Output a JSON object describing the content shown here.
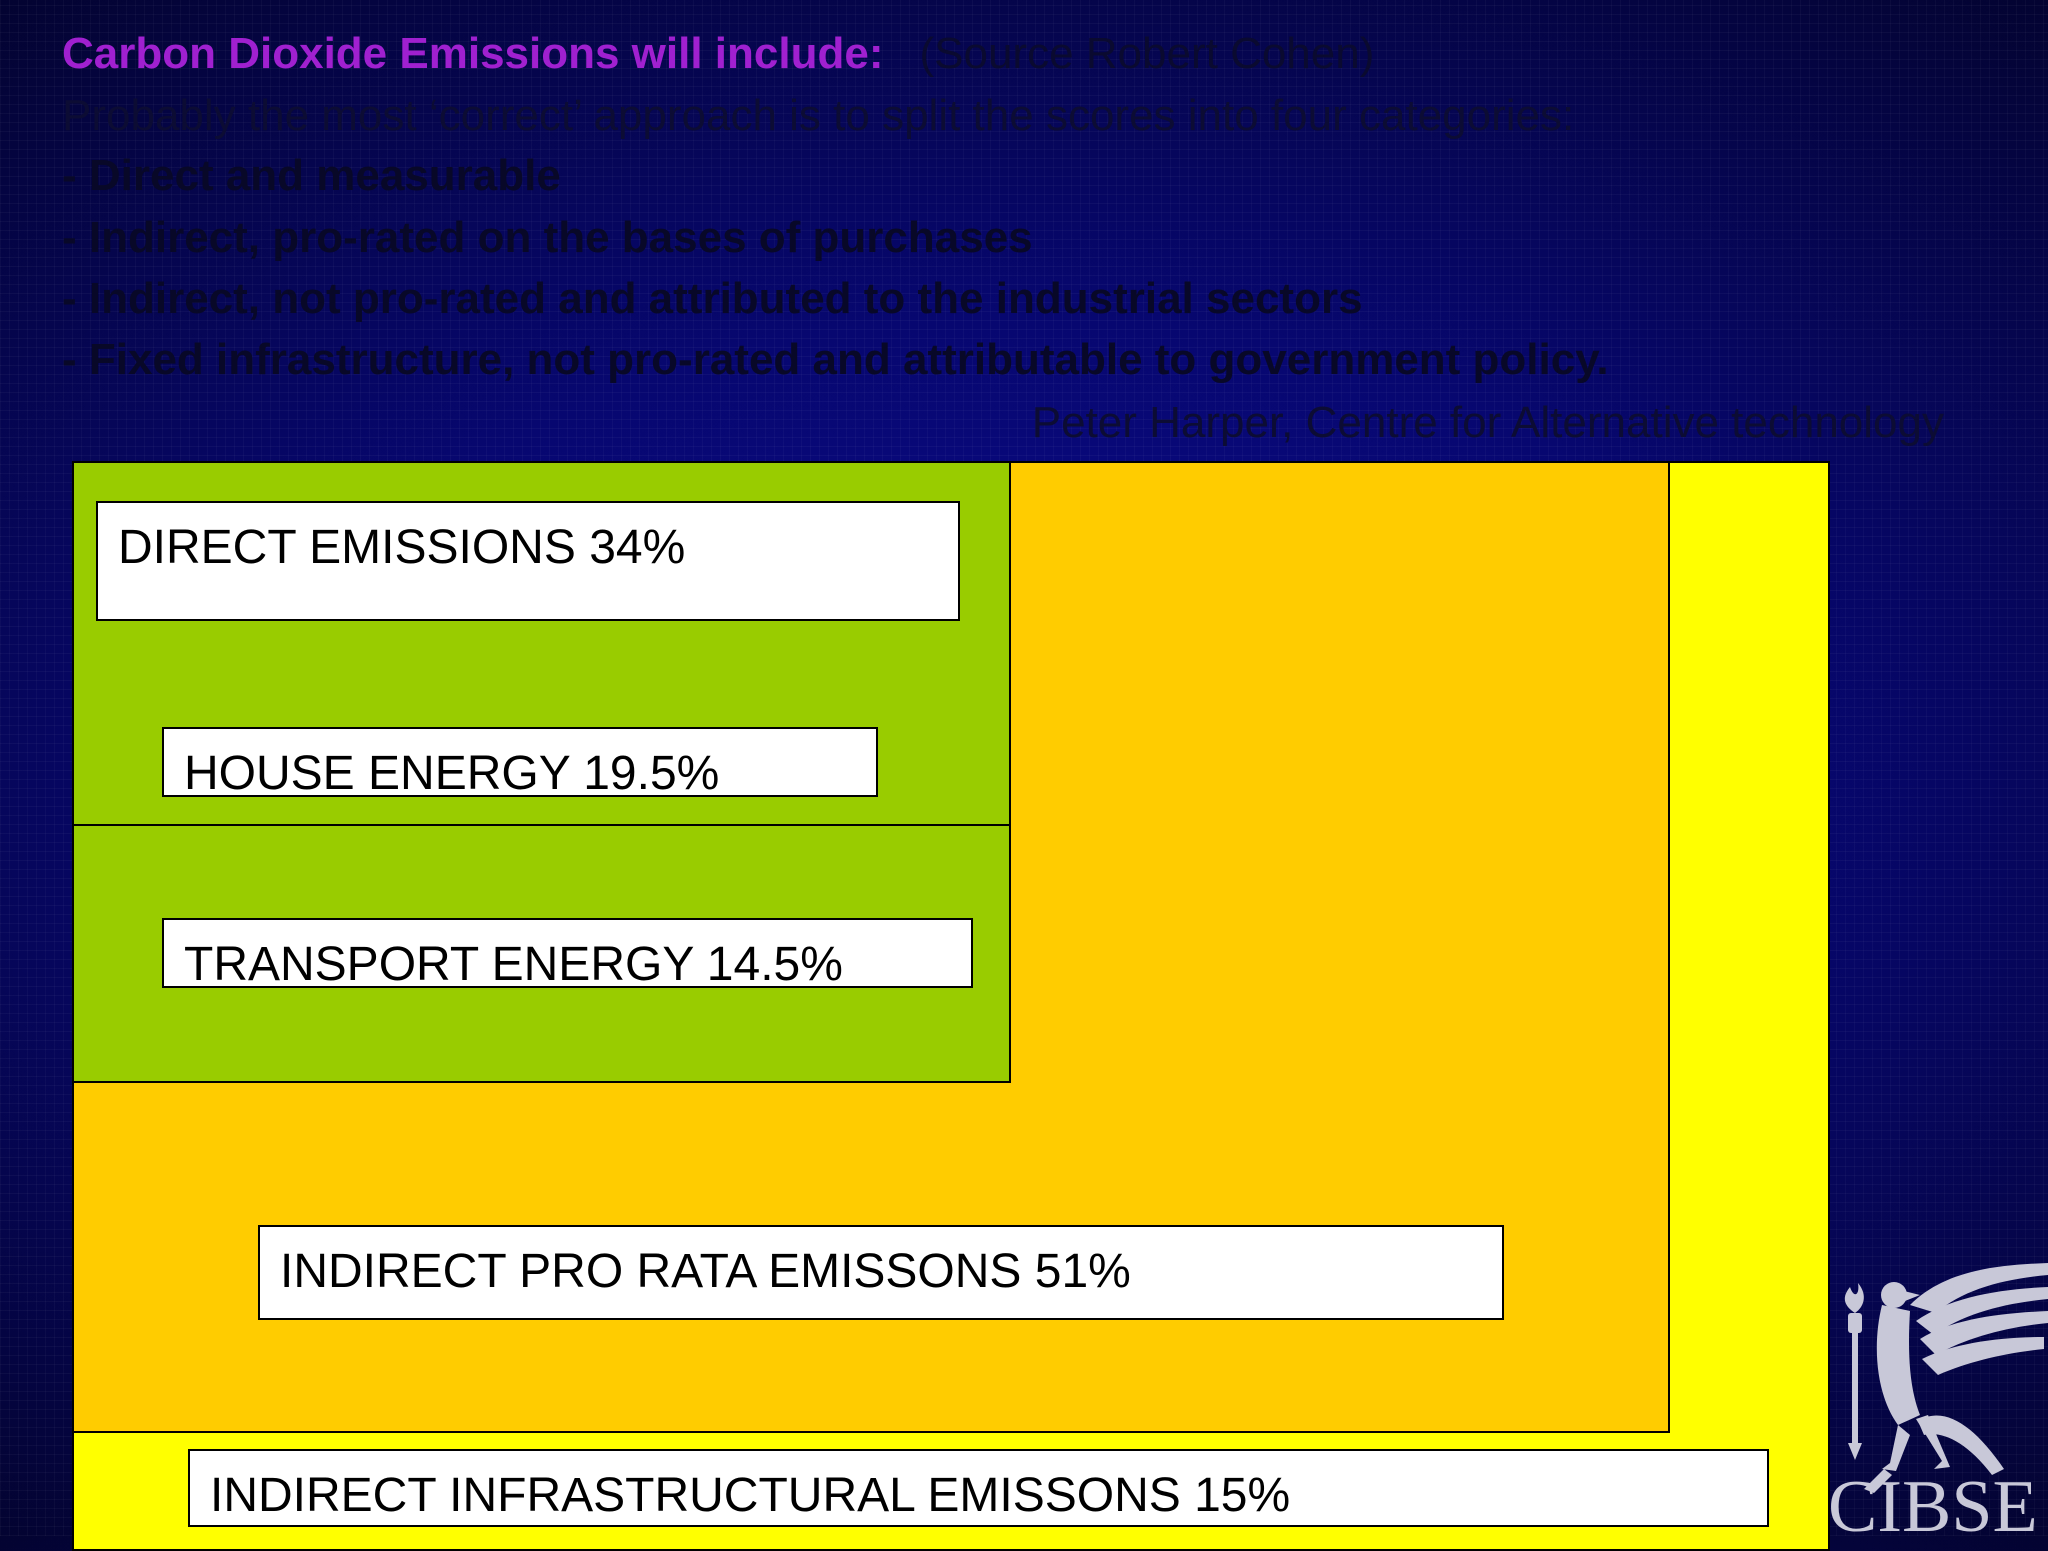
{
  "header": {
    "title": "Carbon Dioxide Emissions will include:",
    "source": "(Source Robert Cohen)"
  },
  "intro": "Probably the most ‘correct’ approach is to split the scores into four categories:",
  "categories": [
    "- Direct and measurable",
    "- Indirect, pro-rated on the bases of purchases",
    "- Indirect, not pro-rated and attributed to the industrial sectors",
    "- Fixed infrastructure, not pro-rated and attributable to government policy."
  ],
  "attribution": "Peter Harper, Centre for Alternative technology",
  "diagram": {
    "direct_label": "DIRECT EMISSIONS 34%",
    "house_label": "HOUSE ENERGY 19.5%",
    "transport_label": "TRANSPORT ENERGY 14.5%",
    "prorata_label": "INDIRECT PRO RATA EMISSONS 51%",
    "infra_label": "INDIRECT INFRASTRUCTURAL EMISSONS 15%",
    "colors": {
      "direct": "#99cc00",
      "prorata": "#ffcc00",
      "infrastructure": "#ffff00"
    }
  },
  "logo": {
    "text": "CIBSE",
    "icon": "cibse-falcon-torch-logo"
  }
}
